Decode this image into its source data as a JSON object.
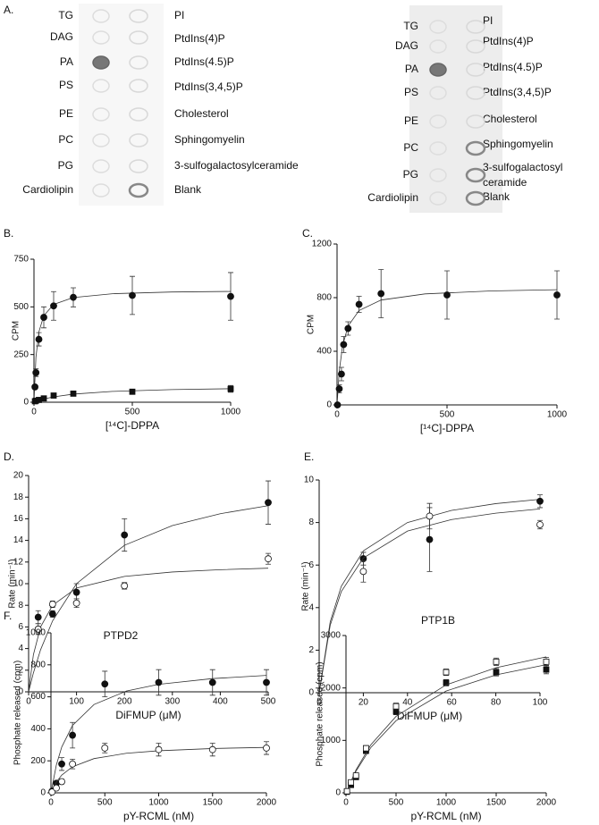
{
  "panel_a": "A.",
  "blots": [
    {
      "left_labels": [
        "TG",
        "DAG",
        "PA",
        "PS",
        "PE",
        "PC",
        "PG",
        "Cardiolipin"
      ],
      "right_labels": [
        "PI",
        "PtdIns(4)P",
        "PtdIns(4.5)P",
        "PtdIns(3,4,5)P",
        "Cholesterol",
        "Sphingomyelin",
        "3-sulfogalactosylceramide",
        "Blank"
      ]
    },
    {
      "left_labels": [
        "TG",
        "DAG",
        "PA",
        "PS",
        "PE",
        "PC",
        "PG",
        "Cardiolipin"
      ],
      "right_labels": [
        "PI",
        "PtdIns(4)P",
        "PtdIns(4.5)P",
        "PtdIns(3,4,5)P",
        "Cholesterol",
        "Sphingomyelin",
        "3-sulfogalactosyl",
        "ceramide",
        "Blank"
      ]
    }
  ],
  "chart_data": [
    {
      "type": "scatter",
      "panel": "B.",
      "ylabel": "CPM",
      "xlabel": "[¹⁴C]-DPPA",
      "xlim": [
        0,
        1000
      ],
      "xticks": [
        0,
        500,
        1000
      ],
      "ylim": [
        0,
        750
      ],
      "yticks": [
        0,
        250,
        500,
        750
      ],
      "series": [
        {
          "marker": "filled-circle",
          "x": [
            5,
            10,
            25,
            50,
            100,
            200,
            500,
            1000
          ],
          "values": [
            80,
            155,
            330,
            445,
            505,
            550,
            560,
            555
          ],
          "errors": [
            10,
            20,
            35,
            55,
            75,
            50,
            100,
            125
          ],
          "fit": {
            "x": [
              0,
              10,
              25,
              50,
              100,
              200,
              400,
              700,
              1000
            ],
            "values": [
              0,
              236,
              369,
              454,
              513,
              549,
              569,
              578,
              581
            ]
          }
        },
        {
          "marker": "filled-square",
          "x": [
            5,
            10,
            25,
            50,
            100,
            200,
            500,
            1000
          ],
          "values": [
            5,
            8,
            12,
            20,
            35,
            45,
            55,
            70
          ],
          "errors": [
            2,
            3,
            3,
            5,
            8,
            10,
            12,
            18
          ],
          "fit": {
            "x": [
              0,
              25,
              50,
              100,
              200,
              400,
              700,
              1000
            ],
            "values": [
              0,
              9.4,
              17,
              28.3,
              42.5,
              56.7,
              66.1,
              70.8
            ]
          }
        }
      ]
    },
    {
      "type": "scatter",
      "panel": "C.",
      "ylabel": "CPM",
      "xlabel": "[¹⁴C]-DPPA",
      "xlim": [
        0,
        1000
      ],
      "xticks": [
        0,
        500,
        1000
      ],
      "ylim": [
        0,
        1200
      ],
      "yticks": [
        0,
        400,
        800,
        1200
      ],
      "series": [
        {
          "marker": "filled-circle",
          "x": [
            2,
            10,
            20,
            30,
            50,
            100,
            200,
            500,
            1000
          ],
          "values": [
            0,
            120,
            230,
            450,
            570,
            750,
            830,
            820,
            820
          ],
          "errors": [
            10,
            30,
            50,
            60,
            50,
            60,
            180,
            180,
            180
          ],
          "fit": {
            "x": [
              0,
              10,
              25,
              50,
              100,
              200,
              400,
              700,
              1000
            ],
            "values": [
              0,
              251,
              440,
              587,
              704,
              782,
              828,
              850,
              859
            ]
          }
        }
      ]
    },
    {
      "type": "scatter",
      "panel": "D.",
      "ylabel": "Rate (min⁻¹)",
      "xlabel": "DiFMUP (μM)",
      "xlim": [
        0,
        500
      ],
      "xticks": [
        0,
        100,
        200,
        300,
        400,
        500
      ],
      "ylim": [
        0,
        20
      ],
      "yticks": [
        0,
        2,
        4,
        6,
        8,
        10,
        12,
        14,
        16,
        18,
        20
      ],
      "series": [
        {
          "marker": "filled-circle",
          "x": [
            20,
            50,
            100,
            200,
            500
          ],
          "values": [
            6.9,
            7.2,
            9.2,
            14.5,
            17.5
          ],
          "errors": [
            0.6,
            0.3,
            0.8,
            1.5,
            2
          ],
          "fit": {
            "x": [
              0,
              10,
              25,
              50,
              100,
              200,
              300,
              400,
              500
            ],
            "values": [
              0,
              1.75,
              3.89,
              6.56,
              10,
              13.55,
              15.37,
              16.47,
              17.21
            ]
          }
        },
        {
          "marker": "open-circle",
          "x": [
            20,
            50,
            100,
            200,
            500
          ],
          "values": [
            5.8,
            8.1,
            8.2,
            9.8,
            12.3
          ],
          "errors": [
            0.5,
            0.3,
            0.4,
            0.3,
            0.5
          ],
          "fit": {
            "x": [
              0,
              10,
              25,
              50,
              100,
              200,
              300,
              400,
              500
            ],
            "values": [
              0,
              3.43,
              6,
              8,
              9.6,
              10.67,
              11.08,
              11.29,
              11.43
            ]
          }
        }
      ]
    },
    {
      "type": "scatter",
      "panel": "E.",
      "ylabel": "Rate (min⁻¹)",
      "xlabel": "DiFMUP (μM)",
      "xlim": [
        0,
        100
      ],
      "xticks": [
        0,
        20,
        40,
        60,
        80,
        100
      ],
      "ylim": [
        0,
        10
      ],
      "yticks": [
        0,
        2,
        4,
        6,
        8,
        10
      ],
      "series": [
        {
          "marker": "filled-circle",
          "x": [
            20,
            50,
            100
          ],
          "values": [
            6.3,
            7.2,
            9
          ],
          "errors": [
            0.3,
            1.5,
            0.3
          ],
          "fit": {
            "x": [
              0,
              5,
              10,
              20,
              40,
              60,
              80,
              100
            ],
            "values": [
              0,
              3.33,
              5,
              6.67,
              8,
              8.57,
              8.89,
              9.09
            ]
          }
        },
        {
          "marker": "open-circle",
          "x": [
            20,
            50,
            100
          ],
          "values": [
            5.7,
            8.3,
            7.9
          ],
          "errors": [
            0.5,
            0.6,
            0.2
          ],
          "fit": {
            "x": [
              0,
              5,
              10,
              20,
              40,
              60,
              80,
              100
            ],
            "values": [
              0,
              3.17,
              4.75,
              6.33,
              7.6,
              8.14,
              8.44,
              8.64
            ]
          }
        }
      ]
    },
    {
      "type": "scatter",
      "panel": "F.",
      "title": "PTPD2",
      "ylabel": "Phosphate released (cpm)",
      "xlabel": "pY-RCML (nM)",
      "xlim": [
        0,
        2000
      ],
      "xticks": [
        0,
        500,
        1000,
        1500,
        2000
      ],
      "ylim": [
        0,
        1000
      ],
      "yticks": [
        0,
        200,
        400,
        600,
        800,
        1000
      ],
      "series": [
        {
          "marker": "filled-circle",
          "x": [
            10,
            50,
            100,
            200,
            500,
            1000,
            1500,
            2000
          ],
          "values": [
            10,
            60,
            180,
            360,
            680,
            690,
            690,
            690
          ],
          "errors": [
            5,
            10,
            40,
            80,
            80,
            80,
            80,
            80
          ],
          "fit": {
            "x": [
              0,
              50,
              100,
              200,
              400,
              700,
              1000,
              1500,
              2000
            ],
            "values": [
              0,
              174,
              286,
              421,
              552,
              636,
              678,
              714,
              734
            ]
          }
        },
        {
          "marker": "open-circle",
          "x": [
            10,
            50,
            100,
            200,
            500,
            1000,
            1500,
            2000
          ],
          "values": [
            5,
            30,
            70,
            180,
            280,
            270,
            270,
            280
          ],
          "errors": [
            5,
            10,
            15,
            30,
            30,
            40,
            40,
            40
          ],
          "fit": {
            "x": [
              0,
              50,
              100,
              200,
              400,
              700,
              1000,
              1500,
              2000
            ],
            "values": [
              0,
              67,
              111,
              163,
              214,
              247,
              263,
              277,
              284
            ]
          }
        }
      ]
    },
    {
      "type": "scatter",
      "title": "PTP1B",
      "ylabel": "Phosphate released (cpm)",
      "xlabel": "pY-RCML (nM)",
      "xlim": [
        0,
        2000
      ],
      "xticks": [
        0,
        500,
        1000,
        1500,
        2000
      ],
      "ylim": [
        0,
        3000
      ],
      "yticks": [
        0,
        1000,
        2000,
        3000
      ],
      "series": [
        {
          "marker": "filled-square",
          "x": [
            10,
            50,
            100,
            200,
            500,
            1000,
            1500,
            2000
          ],
          "values": [
            20,
            150,
            300,
            800,
            1550,
            2100,
            2300,
            2350
          ],
          "errors": [
            20,
            30,
            30,
            50,
            60,
            60,
            70,
            80
          ],
          "fit": {
            "x": [
              0,
              100,
              250,
              500,
              1000,
              1500,
              2000
            ],
            "values": [
              0,
              413,
              868,
              1375,
              1941,
              2250,
              2444
            ]
          }
        },
        {
          "marker": "open-square",
          "x": [
            10,
            50,
            100,
            200,
            500,
            1000,
            1500,
            2000
          ],
          "values": [
            30,
            200,
            330,
            850,
            1650,
            2300,
            2500,
            2500
          ],
          "errors": [
            20,
            30,
            30,
            50,
            60,
            60,
            70,
            80
          ],
          "fit": {
            "x": [
              0,
              100,
              250,
              500,
              1000,
              1500,
              2000
            ],
            "values": [
              0,
              438,
              921,
              1458,
              2059,
              2386,
              2593
            ]
          }
        }
      ]
    }
  ]
}
